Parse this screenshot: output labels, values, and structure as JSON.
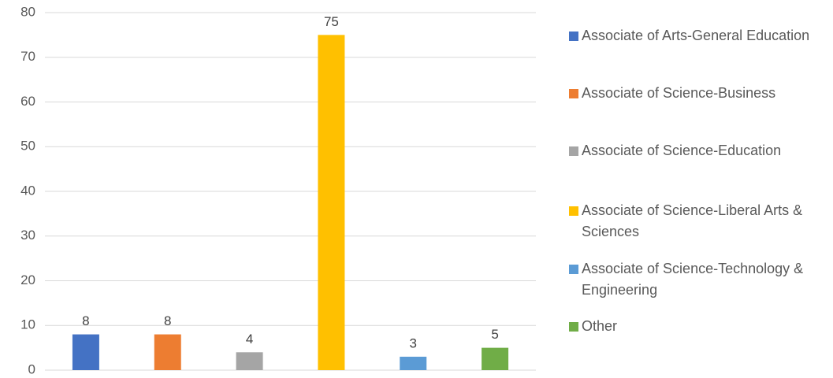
{
  "chart_data": {
    "type": "bar",
    "series": [
      {
        "name": "Associate of Arts-General Education",
        "color": "#4472c4",
        "values": [
          8
        ]
      },
      {
        "name": "Associate of Science-Business",
        "color": "#ed7d31",
        "values": [
          8
        ]
      },
      {
        "name": "Associate of Science-Education",
        "color": "#a5a5a5",
        "values": [
          4
        ]
      },
      {
        "name": "Associate of Science-Liberal Arts & Sciences",
        "color": "#ffc000",
        "values": [
          75
        ]
      },
      {
        "name": "Associate of Science-Technology & Engineering",
        "color": "#5b9bd5",
        "values": [
          3
        ]
      },
      {
        "name": "Other",
        "color": "#70ad47",
        "values": [
          5
        ]
      }
    ],
    "ylim": [
      0,
      80
    ],
    "yticks": [
      0,
      10,
      20,
      30,
      40,
      50,
      60,
      70,
      80
    ],
    "grid": true,
    "legend": "right"
  }
}
